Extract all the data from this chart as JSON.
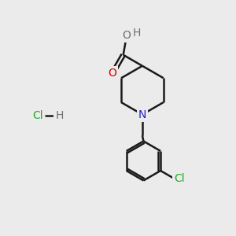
{
  "bg_color": "#ebebeb",
  "bond_color": "#1a1a1a",
  "bond_width": 1.8,
  "atom_colors": {
    "H": "#707070",
    "O_gray": "#707070",
    "O_red": "#cc0000",
    "N": "#2222cc",
    "Cl_green": "#22aa22",
    "Cl_dark": "#1a1a1a"
  },
  "font_size": 10
}
